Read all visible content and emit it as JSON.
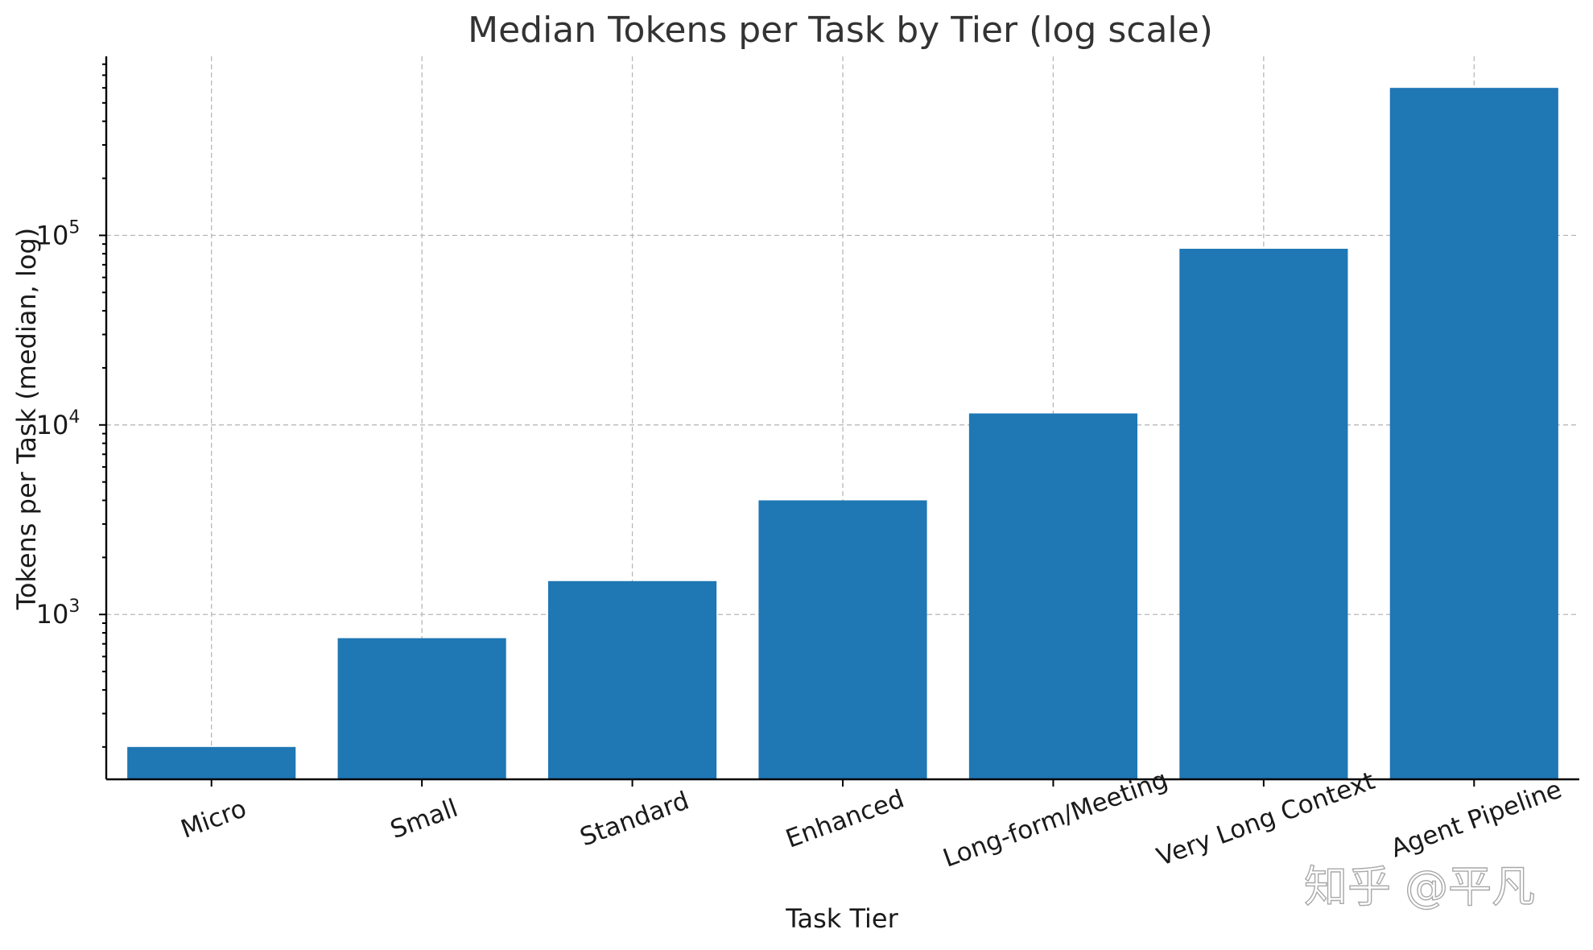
{
  "chart_data": {
    "type": "bar",
    "title": "Median Tokens per Task by Tier (log scale)",
    "xlabel": "Task Tier",
    "ylabel": "Tokens per Task (median, log)",
    "categories": [
      "Micro",
      "Small",
      "Standard",
      "Enhanced",
      "Long-form/Meeting",
      "Very Long Context",
      "Agent Pipeline"
    ],
    "values": [
      200,
      750,
      1500,
      4000,
      11500,
      85000,
      600000
    ],
    "y_scale": "log",
    "ylim": [
      135,
      880000
    ],
    "y_ticks": [
      {
        "base": "10",
        "exp": "3",
        "value": 1000
      },
      {
        "base": "10",
        "exp": "4",
        "value": 10000
      },
      {
        "base": "10",
        "exp": "5",
        "value": 100000
      }
    ],
    "grid": true,
    "bar_color": "#1f77b4",
    "x_tick_rotation": "rotated"
  },
  "watermark": "知乎 @平凡"
}
